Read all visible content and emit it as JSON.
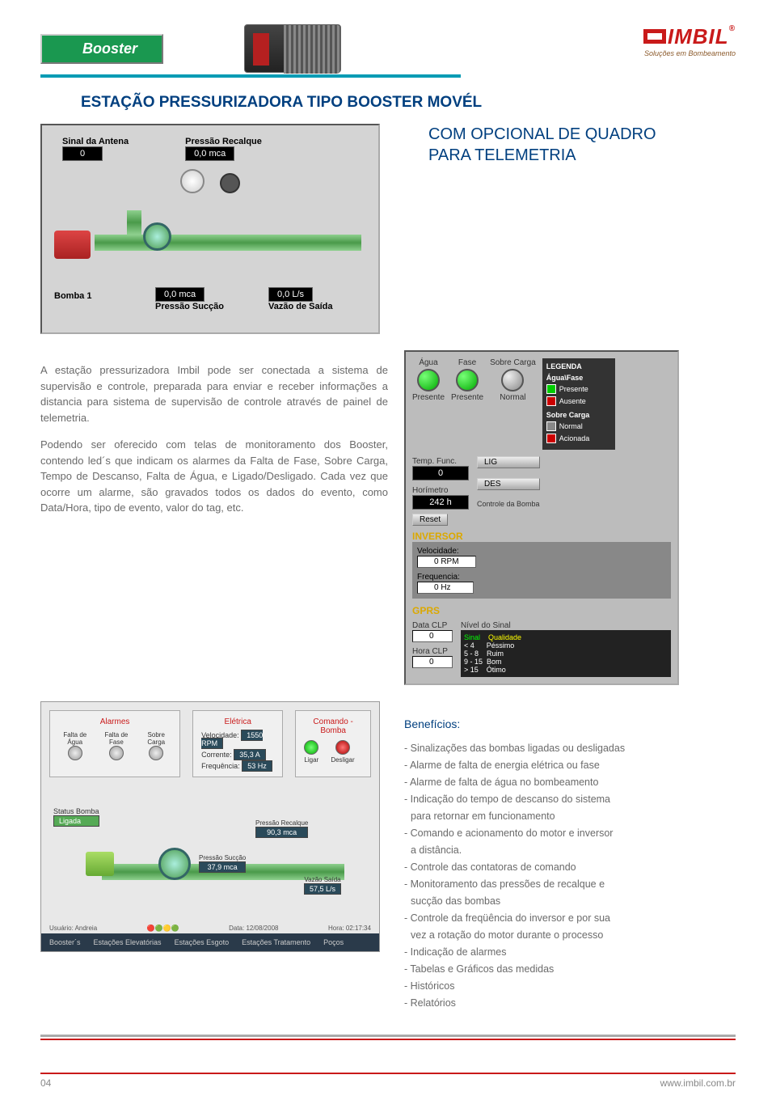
{
  "header": {
    "tab_label": "Booster",
    "logo_text": "IMBIL",
    "logo_sub": "Soluções em Bombeamento"
  },
  "title": "ESTAÇÃO PRESSURIZADORA TIPO BOOSTER MOVÉL",
  "subtitle_line1": "COM OPCIONAL DE QUADRO",
  "subtitle_line2": "PARA TELEMETRIA",
  "hmi1": {
    "sinal_antena_label": "Sinal da Antena",
    "sinal_antena_value": "0",
    "pressao_recalque_label": "Pressão Recalque",
    "pressao_recalque_value": "0,0 mca",
    "bomba_label": "Bomba 1",
    "pressao_succao_label": "Pressão Sucção",
    "pressao_succao_value": "0,0 mca",
    "vazao_saida_label": "Vazão de Saída",
    "vazao_saida_value": "0,0 L/s"
  },
  "paragraph1": "A estação pressurizadora Imbil pode ser conectada a sistema de supervisão e controle, preparada para enviar e receber informações a distancia para sistema de supervisão de controle através de painel de telemetria.",
  "paragraph2": "Podendo ser oferecido com telas de monitoramento dos Booster, contendo led´s que indicam os alarmes da Falta de Fase, Sobre Carga, Tempo de Descanso, Falta de Água, e Ligado/Desligado. Cada vez que ocorre um alarme, são gravados todos os dados do evento, como Data/Hora, tipo de evento, valor do tag, etc.",
  "hmi2": {
    "agua": "Água",
    "fase": "Fase",
    "sobre_carga": "Sobre Carga",
    "presente": "Presente",
    "normal": "Normal",
    "legenda": "LEGENDA",
    "agua_fase": "Água\\Fase",
    "ausente": "Ausente",
    "sobre_carga2": "Sobre Carga",
    "normal2": "Normal",
    "acionada": "Acionada",
    "temp_func": "Temp. Func.",
    "temp_func_val": "0",
    "lig": "LIG",
    "des": "DES",
    "horimetro": "Horímetro",
    "horimetro_val": "242 h",
    "reset": "Reset",
    "controle_bomba": "Controle da Bomba",
    "inversor": "INVERSOR",
    "velocidade": "Velocidade:",
    "velocidade_val": "0 RPM",
    "frequencia": "Frequencia:",
    "frequencia_val": "0 Hz",
    "gprs": "GPRS",
    "data_clp": "Data CLP",
    "data_clp_val": "0",
    "hora_clp": "Hora CLP",
    "hora_clp_val": "0",
    "nivel_sinal": "Nível do Sinal",
    "sinal_h": "Sinal",
    "qualidade_h": "Qualidade",
    "r1a": "< 4",
    "r1b": "Péssimo",
    "r2a": "5 - 8",
    "r2b": "Ruim",
    "r3a": "9 - 15",
    "r3b": "Bom",
    "r4a": "> 15",
    "r4b": "Ótimo"
  },
  "hmi3": {
    "alarmes": "Alarmes",
    "eletrica": "Elétrica",
    "comando_bomba": "Comando - Bomba",
    "falta_agua": "Falta de Água",
    "falta_fase": "Falta de Fase",
    "sobre_carga": "Sobre Carga",
    "velocidade": "Velocidade:",
    "velocidade_val": "1550 RPM",
    "corrente": "Corrente:",
    "corrente_val": "35,3 A",
    "frequencia": "Frequência:",
    "frequencia_val": "53 Hz",
    "ligar": "Ligar",
    "desligar": "Desligar",
    "status_bomba": "Status Bomba",
    "ligada": "Ligada",
    "pressao_recalque": "Pressão Recalque",
    "pr_val": "90,3 mca",
    "pressao_succao": "Pressão Sucção",
    "ps_val": "37,9 mca",
    "vazao_saida": "Vazão Saída",
    "vs_val": "57,5 L/s",
    "usuario": "Usuário: Andreia",
    "data": "Data: 12/08/2008",
    "hora": "Hora: 02:17:34",
    "tab1": "Booster´s",
    "tab2": "Estações Elevatórias",
    "tab3": "Estações Esgoto",
    "tab4": "Estações Tratamento",
    "tab5": "Poços"
  },
  "benefits": {
    "title": "Benefícios:",
    "items": [
      "- Sinalizações das bombas ligadas ou desligadas",
      "- Alarme de falta de energia elétrica ou fase",
      "- Alarme de falta de água no bombeamento",
      "- Indicação do tempo de descanso do sistema",
      "  para retornar em funcionamento",
      "- Comando e acionamento do motor e inversor",
      "  a distância.",
      "- Controle das contatoras de comando",
      "- Monitoramento das pressões de recalque e",
      "  sucção das bombas",
      "- Controle da freqüência do inversor e por sua",
      "  vez a rotação do motor durante o processo",
      "- Indicação de alarmes",
      "- Tabelas e Gráficos das medidas",
      "- Históricos",
      "- Relatórios"
    ]
  },
  "footer": {
    "page": "04",
    "url": "www.imbil.com.br"
  },
  "colors": {
    "brand_blue": "#003f7f",
    "brand_red": "#c91a1a",
    "body_gray": "#6a6a6a",
    "green_tab": "#1a9850",
    "teal_line": "#009bb4",
    "panel_gray": "#c8c8c8"
  }
}
